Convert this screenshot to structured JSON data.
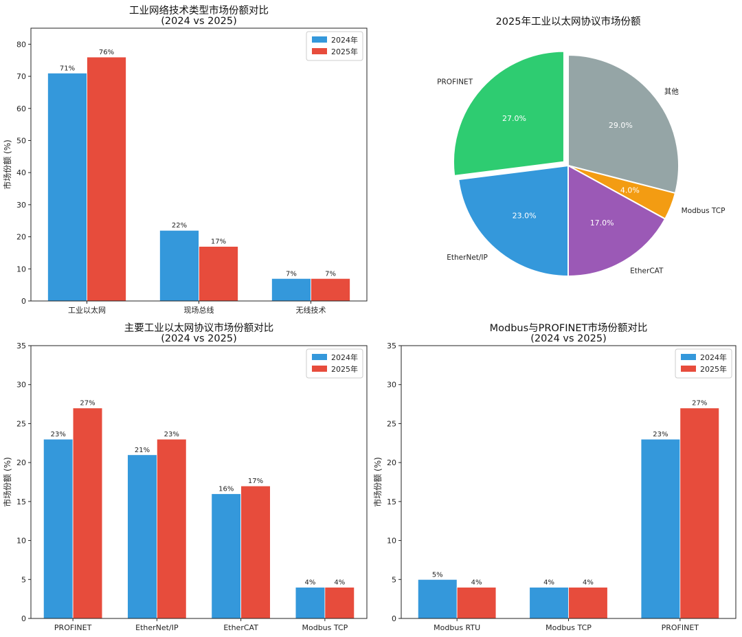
{
  "colors": {
    "2024": "#3498db",
    "2025": "#e74c3c",
    "axis": "#222222"
  },
  "chart_data": [
    {
      "type": "bar",
      "title": "工业网络技术类型市场份额对比",
      "subtitle": "(2024 vs 2025)",
      "ylabel": "市场份额 (%)",
      "ylim": [
        0,
        85
      ],
      "yticks": [
        0,
        10,
        20,
        30,
        40,
        50,
        60,
        70,
        80
      ],
      "categories": [
        "工业以太网",
        "现场总线",
        "无线技术"
      ],
      "series": [
        {
          "name": "2024年",
          "values": [
            71,
            22,
            7
          ],
          "labels": [
            "71%",
            "22%",
            "7%"
          ],
          "color": "#3498db"
        },
        {
          "name": "2025年",
          "values": [
            76,
            17,
            7
          ],
          "labels": [
            "76%",
            "17%",
            "7%"
          ],
          "color": "#e74c3c"
        }
      ],
      "legend": "top-right",
      "grid": false
    },
    {
      "type": "pie",
      "title": "2025年工业以太网协议市场份额",
      "slices": [
        {
          "label": "其他",
          "value": 29.0,
          "pct": "29.0%",
          "color": "#95a5a6"
        },
        {
          "label": "Modbus TCP",
          "value": 4.0,
          "pct": "4.0%",
          "color": "#f39c12"
        },
        {
          "label": "EtherCAT",
          "value": 17.0,
          "pct": "17.0%",
          "color": "#9b59b6"
        },
        {
          "label": "EtherNet/IP",
          "value": 23.0,
          "pct": "23.0%",
          "color": "#3498db"
        },
        {
          "label": "PROFINET",
          "value": 27.0,
          "pct": "27.0%",
          "color": "#2ecc71",
          "explode": true
        }
      ]
    },
    {
      "type": "bar",
      "title": "主要工业以太网协议市场份额对比",
      "subtitle": "(2024 vs 2025)",
      "ylabel": "市场份额 (%)",
      "ylim": [
        0,
        35
      ],
      "yticks": [
        0,
        5,
        10,
        15,
        20,
        25,
        30,
        35
      ],
      "categories": [
        "PROFINET",
        "EtherNet/IP",
        "EtherCAT",
        "Modbus TCP"
      ],
      "series": [
        {
          "name": "2024年",
          "values": [
            23,
            21,
            16,
            4
          ],
          "labels": [
            "23%",
            "21%",
            "16%",
            "4%"
          ],
          "color": "#3498db"
        },
        {
          "name": "2025年",
          "values": [
            27,
            23,
            17,
            4
          ],
          "labels": [
            "27%",
            "23%",
            "17%",
            "4%"
          ],
          "color": "#e74c3c"
        }
      ],
      "legend": "top-right",
      "grid": false
    },
    {
      "type": "bar",
      "title": "Modbus与PROFINET市场份额对比",
      "subtitle": "(2024 vs 2025)",
      "ylabel": "市场份额 (%)",
      "ylim": [
        0,
        35
      ],
      "yticks": [
        0,
        5,
        10,
        15,
        20,
        25,
        30,
        35
      ],
      "categories": [
        "Modbus RTU",
        "Modbus TCP",
        "PROFINET"
      ],
      "series": [
        {
          "name": "2024年",
          "values": [
            5,
            4,
            23
          ],
          "labels": [
            "5%",
            "4%",
            "23%"
          ],
          "color": "#3498db"
        },
        {
          "name": "2025年",
          "values": [
            4,
            4,
            27
          ],
          "labels": [
            "4%",
            "4%",
            "27%"
          ],
          "color": "#e74c3c"
        }
      ],
      "legend": "top-right",
      "grid": false
    }
  ]
}
